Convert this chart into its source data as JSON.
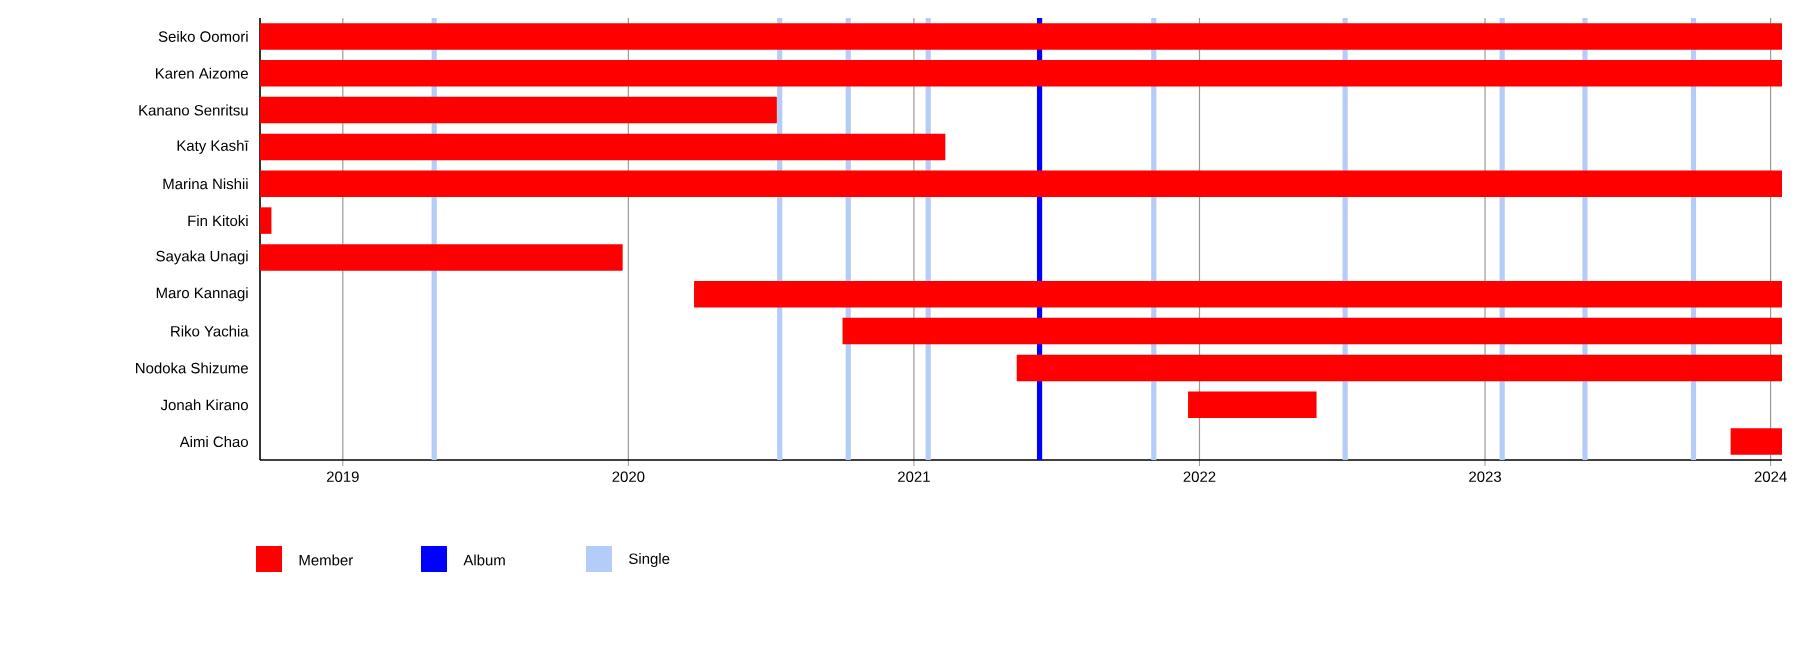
{
  "chart_data": {
    "type": "bar",
    "orientation": "horizontal",
    "categories": [
      "Seiko Oomori",
      "Karen Aizome",
      "Kanano Senritsu",
      "Katy Kashī",
      "Marina Nishii",
      "Fin Kitoki",
      "Sayaka Unagi",
      "Maro Kannagi",
      "Riko Yachia",
      "Nodoka Shizume",
      "Jonah Kirano",
      "Aimi Chao"
    ],
    "series": [
      {
        "name": "Member",
        "color": "#ff0000",
        "base": [
          2018.71,
          2018.71,
          2018.71,
          2018.71,
          2018.71,
          2018.71,
          2018.71,
          2020.23,
          2020.75,
          2021.36,
          2021.96,
          2023.86
        ],
        "values": [
          5.33,
          5.33,
          1.81,
          2.4,
          5.33,
          0.04,
          1.27,
          3.81,
          3.29,
          2.68,
          0.45,
          0.18
        ]
      }
    ],
    "xlim": [
      2018.71,
      2024.04
    ],
    "xticks": [
      2019,
      2020,
      2021,
      2022,
      2023,
      2024
    ],
    "grid": "x",
    "legend": "bottom",
    "ref_lines": [
      {
        "axis": "x",
        "value": 2021.44,
        "label": "Album",
        "color": "#0000ff"
      },
      {
        "axis": "x",
        "value": 2019.32,
        "label": "Single",
        "color": "#b3cdf8"
      },
      {
        "axis": "x",
        "value": 2020.53,
        "color": "#b3cdf8"
      },
      {
        "axis": "x",
        "value": 2020.77,
        "color": "#b3cdf8"
      },
      {
        "axis": "x",
        "value": 2021.05,
        "color": "#b3cdf8"
      },
      {
        "axis": "x",
        "value": 2021.84,
        "color": "#b3cdf8"
      },
      {
        "axis": "x",
        "value": 2022.51,
        "color": "#b3cdf8"
      },
      {
        "axis": "x",
        "value": 2023.06,
        "color": "#b3cdf8"
      },
      {
        "axis": "x",
        "value": 2023.35,
        "color": "#b3cdf8"
      },
      {
        "axis": "x",
        "value": 2023.73,
        "color": "#b3cdf8"
      }
    ]
  }
}
